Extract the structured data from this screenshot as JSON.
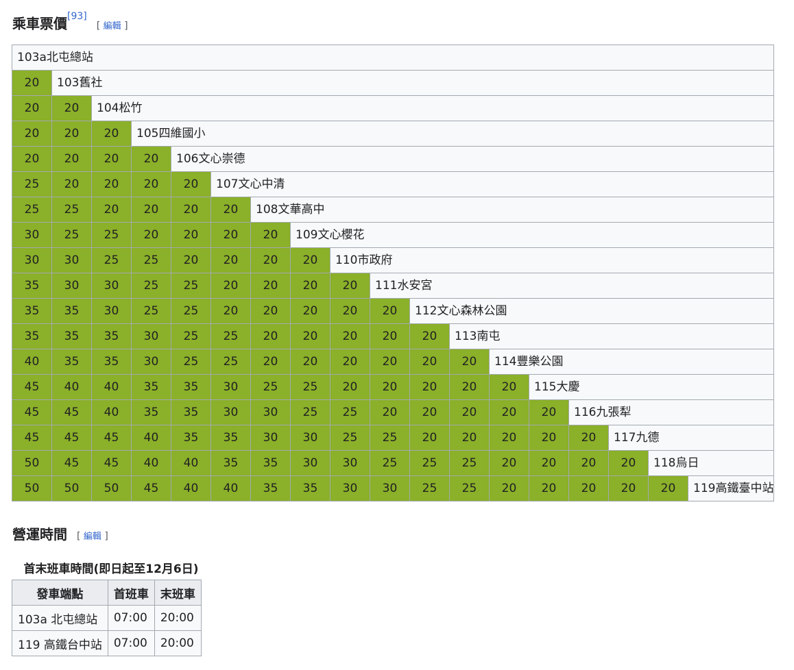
{
  "fare_section": {
    "heading": "乘車票價",
    "ref": "[93]",
    "edit_open": "[",
    "edit_label": "編輯",
    "edit_close": "]"
  },
  "fare_color": "#8bb029",
  "fare_rows": [
    {
      "fares": [],
      "stop": "103a北屯總站"
    },
    {
      "fares": [
        "20"
      ],
      "stop": "103舊社"
    },
    {
      "fares": [
        "20",
        "20"
      ],
      "stop": "104松竹"
    },
    {
      "fares": [
        "20",
        "20",
        "20"
      ],
      "stop": "105四維國小"
    },
    {
      "fares": [
        "20",
        "20",
        "20",
        "20"
      ],
      "stop": "106文心崇德"
    },
    {
      "fares": [
        "25",
        "20",
        "20",
        "20",
        "20"
      ],
      "stop": "107文心中清"
    },
    {
      "fares": [
        "25",
        "25",
        "20",
        "20",
        "20",
        "20"
      ],
      "stop": "108文華高中"
    },
    {
      "fares": [
        "30",
        "25",
        "25",
        "20",
        "20",
        "20",
        "20"
      ],
      "stop": "109文心櫻花"
    },
    {
      "fares": [
        "30",
        "30",
        "25",
        "25",
        "20",
        "20",
        "20",
        "20"
      ],
      "stop": "110市政府"
    },
    {
      "fares": [
        "35",
        "30",
        "30",
        "25",
        "25",
        "20",
        "20",
        "20",
        "20"
      ],
      "stop": "111水安宮"
    },
    {
      "fares": [
        "35",
        "35",
        "30",
        "25",
        "25",
        "20",
        "20",
        "20",
        "20",
        "20"
      ],
      "stop": "112文心森林公園"
    },
    {
      "fares": [
        "35",
        "35",
        "35",
        "30",
        "25",
        "25",
        "20",
        "20",
        "20",
        "20",
        "20"
      ],
      "stop": "113南屯"
    },
    {
      "fares": [
        "40",
        "35",
        "35",
        "30",
        "25",
        "25",
        "20",
        "20",
        "20",
        "20",
        "20",
        "20"
      ],
      "stop": "114豐樂公園"
    },
    {
      "fares": [
        "45",
        "40",
        "40",
        "35",
        "35",
        "30",
        "25",
        "25",
        "20",
        "20",
        "20",
        "20",
        "20"
      ],
      "stop": "115大慶"
    },
    {
      "fares": [
        "45",
        "45",
        "40",
        "35",
        "35",
        "30",
        "30",
        "25",
        "25",
        "20",
        "20",
        "20",
        "20",
        "20"
      ],
      "stop": "116九張犁"
    },
    {
      "fares": [
        "45",
        "45",
        "45",
        "40",
        "35",
        "35",
        "30",
        "30",
        "25",
        "25",
        "20",
        "20",
        "20",
        "20",
        "20"
      ],
      "stop": "117九德"
    },
    {
      "fares": [
        "50",
        "45",
        "45",
        "40",
        "40",
        "35",
        "35",
        "30",
        "30",
        "25",
        "25",
        "25",
        "20",
        "20",
        "20",
        "20"
      ],
      "stop": "118烏日"
    },
    {
      "fares": [
        "50",
        "50",
        "50",
        "45",
        "40",
        "40",
        "35",
        "35",
        "30",
        "30",
        "25",
        "25",
        "20",
        "20",
        "20",
        "20",
        "20"
      ],
      "stop": "119高鐵臺中站"
    }
  ],
  "hours_section": {
    "heading": "營運時間",
    "edit_open": "[",
    "edit_label": "編輯",
    "edit_close": "]"
  },
  "time_table": {
    "caption": "首末班車時間(即日起至12月6日)",
    "headers": [
      "發車端點",
      "首班車",
      "末班車"
    ],
    "rows": [
      [
        "103a 北屯總站",
        "07:00",
        "20:00"
      ],
      [
        "119 高鐵台中站",
        "07:00",
        "20:00"
      ]
    ]
  }
}
